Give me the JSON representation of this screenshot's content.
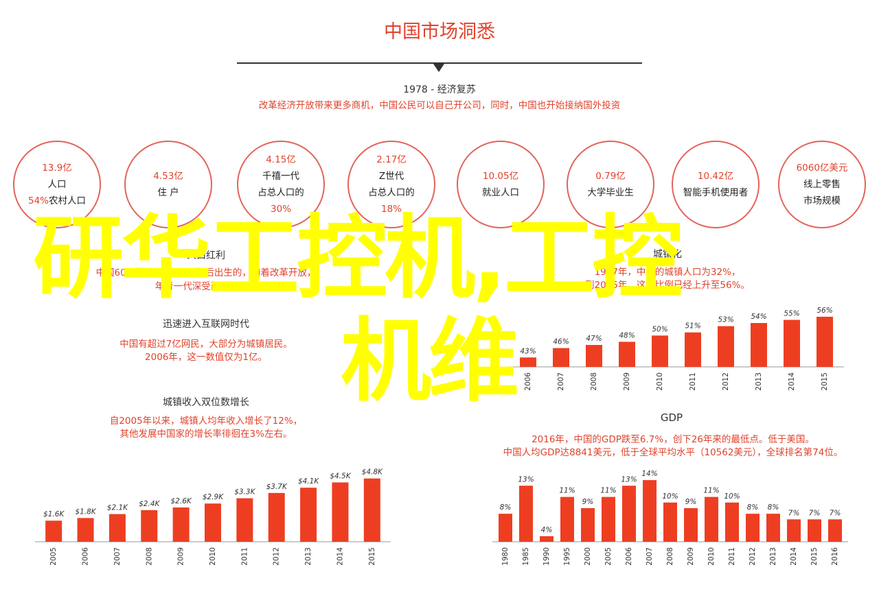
{
  "header": {
    "title": "中国市场洞悉",
    "subtitle": "1978 - 经济复苏",
    "note": "改革经济开放带来更多商机，中国公民可以自己开公司，同时，中国也开始接纳国外投资"
  },
  "circles": [
    {
      "lines": [
        "13.9亿",
        "人口",
        "54%农村人口"
      ]
    },
    {
      "lines": [
        "4.53亿",
        "住 户"
      ]
    },
    {
      "lines": [
        "4.15亿",
        "千禧一代",
        "占总人口的",
        "30%"
      ]
    },
    {
      "lines": [
        "2.17亿",
        "Z世代",
        "占总人口的",
        "18%"
      ]
    },
    {
      "lines": [
        "10.05亿",
        "就业人口"
      ]
    },
    {
      "lines": [
        "0.79亿",
        "大学毕业生"
      ]
    },
    {
      "lines": [
        "10.42亿",
        "智能手机使用者"
      ]
    },
    {
      "lines": [
        "6060亿美元",
        "线上零售",
        "市场规模"
      ]
    }
  ],
  "sections": {
    "left_top": {
      "title": "人口红利",
      "note1": "中国60%的人口在1980年后出生的，随着改革开放，",
      "note2": "年青一代深受西方影响。"
    },
    "left_mid": {
      "title": "迅速进入互联网时代",
      "note1": "中国有超过7亿网民，大部分为城镇居民。",
      "note2": "2006年，这一数值仅为1亿。"
    },
    "left_bottom": {
      "title": "城镇收入双位数增长",
      "note1": "自2005年以来，城镇人均年收入增长了12%，",
      "note2": "其他发展中国家的增长率徘徊在3%左右。"
    },
    "right_top": {
      "title": "城镇化",
      "note1": "1997年，中国的城镇人口为32%，",
      "note2": "到2015年，这一比例已经上升至56%。"
    },
    "right_bottom": {
      "title": "GDP",
      "note1": "2016年，中国的GDP跌至6.7%，创下26年来的最低点。低于美国。",
      "note2": "中国人均GDP达8841美元，低于全球平均水平（10562美元），全球排名第74位。"
    }
  },
  "overlay": {
    "line1": "研华工控机,工控",
    "line2": "机维"
  },
  "chart_data": [
    {
      "type": "bar",
      "id": "urban_income",
      "categories": [
        "2005",
        "2006",
        "2007",
        "2008",
        "2009",
        "2010",
        "2011",
        "2012",
        "2013",
        "2014",
        "2015"
      ],
      "values": [
        1.6,
        1.8,
        2.1,
        2.4,
        2.6,
        2.9,
        3.3,
        3.7,
        4.1,
        4.5,
        4.8
      ],
      "labels": [
        "$1.6K",
        "$1.8K",
        "$2.1K",
        "$2.4K",
        "$2.6K",
        "$2.9K",
        "$3.3K",
        "$3.7K",
        "$4.1K",
        "$4.5K",
        "$4.8K"
      ],
      "ylim": [
        0,
        5.2
      ],
      "color": "#ee3e22"
    },
    {
      "type": "bar",
      "id": "urbanization",
      "categories": [
        "2006",
        "2007",
        "2008",
        "2009",
        "2010",
        "2011",
        "2012",
        "2013",
        "2014",
        "2015"
      ],
      "values": [
        43,
        46,
        47,
        48,
        50,
        51,
        53,
        54,
        55,
        56
      ],
      "labels": [
        "43%",
        "46%",
        "47%",
        "48%",
        "50%",
        "51%",
        "53%",
        "54%",
        "55%",
        "56%"
      ],
      "ylim": [
        40,
        57.5
      ],
      "color": "#ee3e22"
    },
    {
      "type": "bar",
      "id": "gdp_growth",
      "categories": [
        "1980",
        "1985",
        "1990",
        "1995",
        "2000",
        "2005",
        "2006",
        "2007",
        "2008",
        "2009",
        "2010",
        "2011",
        "2012",
        "2013",
        "2014",
        "2015",
        "2016"
      ],
      "values": [
        8,
        13,
        4,
        11,
        9,
        11,
        13,
        14,
        10,
        9,
        11,
        10,
        8,
        8,
        7,
        7,
        7
      ],
      "labels": [
        "8%",
        "13%",
        "4%",
        "11%",
        "9%",
        "11%",
        "13%",
        "14%",
        "10%",
        "9%",
        "11%",
        "10%",
        "8%",
        "8%",
        "7%",
        "7%",
        "7%"
      ],
      "ylim": [
        3,
        14.5
      ],
      "color": "#ee3e22"
    }
  ]
}
